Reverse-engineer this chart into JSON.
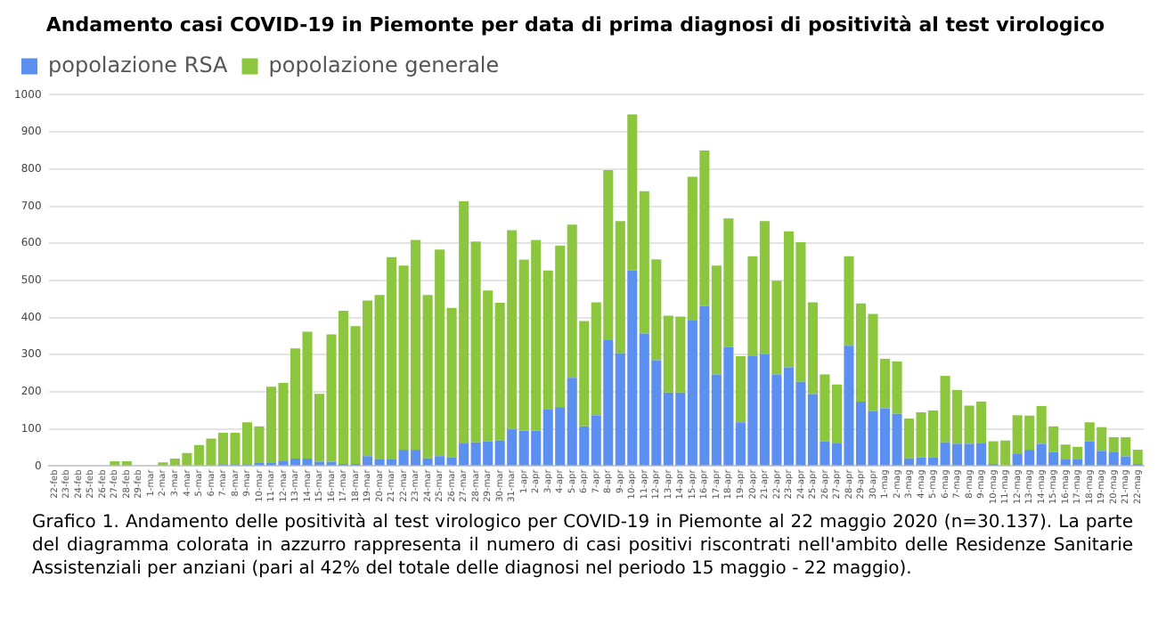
{
  "chart_data": {
    "type": "bar",
    "stacked": true,
    "title": "Andamento casi COVID-19 in Piemonte per data di prima diagnosi di positività al test virologico",
    "categories": [
      "22-feb",
      "23-feb",
      "24-feb",
      "25-feb",
      "26-feb",
      "27-feb",
      "28-feb",
      "29-feb",
      "1-mar",
      "2-mar",
      "3-mar",
      "4-mar",
      "5-mar",
      "6-mar",
      "7-mar",
      "8-mar",
      "9-mar",
      "10-mar",
      "11-mar",
      "12-mar",
      "13-mar",
      "14-mar",
      "15-mar",
      "16-mar",
      "17-mar",
      "18-mar",
      "19-mar",
      "20-mar",
      "21-mar",
      "22-mar",
      "23-mar",
      "24-mar",
      "25-mar",
      "26-mar",
      "27-mar",
      "28-mar",
      "29-mar",
      "30-mar",
      "31-mar",
      "1-apr",
      "2-apr",
      "3-apr",
      "4-apr",
      "5-apr",
      "6-apr",
      "7-apr",
      "8-apr",
      "9-apr",
      "10-apr",
      "11-apr",
      "12-apr",
      "13-apr",
      "14-apr",
      "15-apr",
      "16-apr",
      "17-apr",
      "18-apr",
      "19-apr",
      "20-apr",
      "21-apr",
      "22-apr",
      "23-apr",
      "24-apr",
      "25-apr",
      "26-apr",
      "27-apr",
      "28-apr",
      "29-apr",
      "30-apr",
      "1-mag",
      "2-mag",
      "3-mag",
      "4-mag",
      "5-mag",
      "6-mag",
      "7-mag",
      "8-mag",
      "9-mag",
      "10-mag",
      "11-mag",
      "12-mag",
      "13-mag",
      "14-mag",
      "15-mag",
      "16-mag",
      "17-mag",
      "18-mag",
      "19-mag",
      "20-mag",
      "21-mag",
      "22-mag"
    ],
    "series": [
      {
        "name": "popolazione RSA",
        "color": "#5b8ff0",
        "values": [
          0,
          0,
          0,
          0,
          0,
          0,
          0,
          0,
          0,
          0,
          2,
          2,
          null,
          null,
          5,
          5,
          5,
          8,
          10,
          15,
          20,
          20,
          12,
          12,
          6,
          6,
          27,
          18,
          18,
          44,
          44,
          21,
          27,
          24,
          61,
          64,
          67,
          69,
          99,
          95,
          95,
          153,
          159,
          238,
          107,
          137,
          339,
          304,
          527,
          357,
          285,
          198,
          198,
          392,
          431,
          247,
          321,
          118,
          296,
          301,
          247,
          266,
          227,
          194,
          67,
          61,
          324,
          174,
          148,
          156,
          141,
          21,
          24,
          24,
          64,
          60,
          60,
          61,
          6,
          null,
          34,
          44,
          60,
          38,
          18,
          18,
          67,
          41,
          37,
          26,
          6
        ]
      },
      {
        "name": "popolazione generale",
        "color": "#8cc63f",
        "values": [
          0,
          0,
          0,
          0,
          0,
          13,
          13,
          null,
          0,
          10,
          18,
          33,
          57,
          74,
          85,
          85,
          113,
          99,
          204,
          209,
          297,
          342,
          183,
          343,
          412,
          371,
          419,
          443,
          545,
          496,
          565,
          440,
          556,
          402,
          652,
          541,
          406,
          371,
          536,
          461,
          514,
          374,
          435,
          412,
          284,
          304,
          458,
          356,
          420,
          383,
          272,
          207,
          205,
          387,
          419,
          293,
          346,
          178,
          269,
          359,
          252,
          366,
          376,
          247,
          180,
          159,
          241,
          264,
          262,
          133,
          141,
          107,
          121,
          126,
          179,
          145,
          103,
          113,
          61,
          69,
          103,
          92,
          102,
          69,
          40,
          34,
          51,
          64,
          41,
          52,
          38
        ]
      }
    ],
    "ylim": [
      0,
      1000
    ],
    "yticks": [
      0,
      100,
      200,
      300,
      400,
      500,
      600,
      700,
      800,
      900,
      1000
    ],
    "grid": "y",
    "legend": "top left",
    "annotations": [
      "Grafico 1. Andamento delle positività al test virologico per COVID-19 in Piemonte al 22 maggio 2020 (n=30.137). La parte del diagramma colorata in azzurro rappresenta il numero di casi positivi riscontrati nell'ambito delle Residenze Sanitarie Assistenziali per anziani (pari al 42% del totale delle diagnosi nel periodo 15 maggio - 22 maggio)."
    ]
  }
}
